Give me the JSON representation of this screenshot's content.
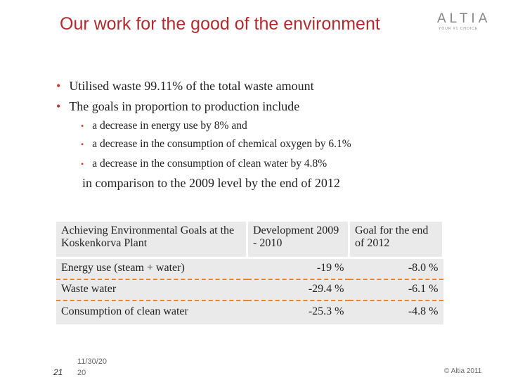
{
  "header": {
    "title": "Our work for the good of the environment",
    "logo": "ALTIA",
    "tagline": "YOUR #1 CHOICE"
  },
  "bullets": [
    "Utilised waste 99.11% of the total waste amount",
    "The goals in proportion to production include"
  ],
  "sub_bullets": [
    "a decrease in energy use by 8% and",
    "a decrease in the consumption of chemical oxygen by 6.1%",
    "a decrease in the consumption of clean water by 4.8%"
  ],
  "note": "in comparison to the 2009 level by the end of 2012",
  "table": {
    "header": [
      "Achieving Environmental Goals at the Koskenkorva Plant",
      "Development 2009 - 2010",
      "Goal for the end of 2012"
    ],
    "rows": [
      [
        "Energy use (steam + water)",
        "-19 %",
        "-8.0 %"
      ],
      [
        "Waste water",
        "-29.4 %",
        "-6.1 %"
      ],
      [
        "Consumption of clean water",
        "-25.3 %",
        "-4.8 %"
      ]
    ]
  },
  "footer": {
    "page": "21",
    "date": "11/30/20 20",
    "copyright": "© Altia 2011"
  }
}
